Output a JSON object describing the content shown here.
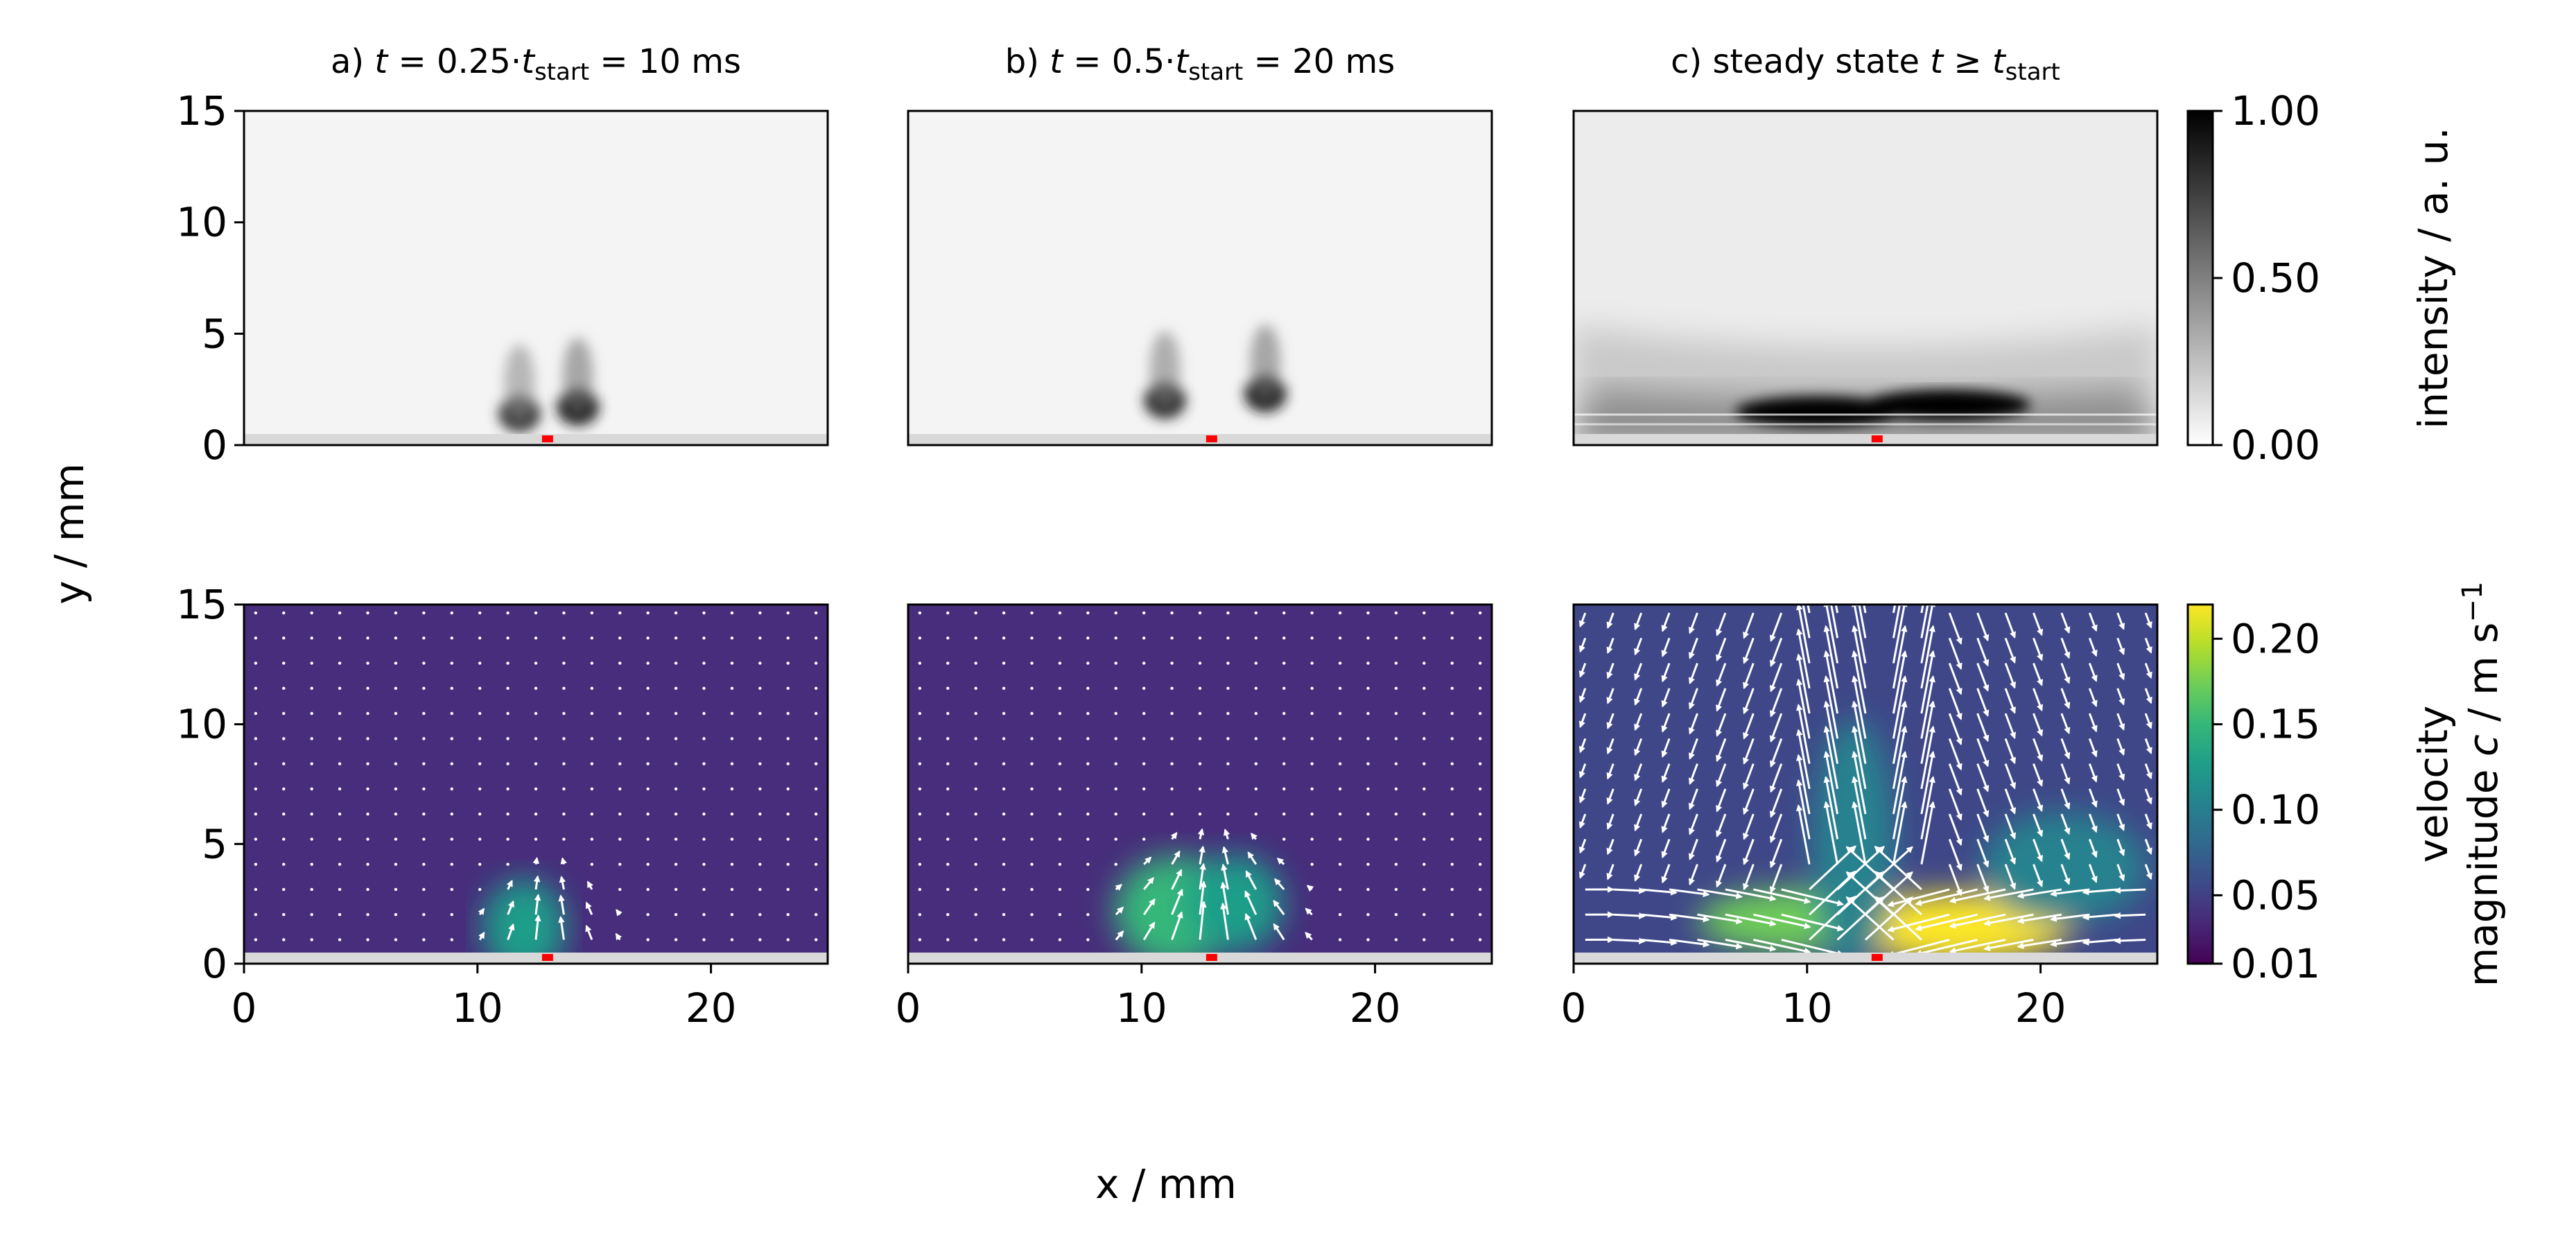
{
  "chart_data": [
    {
      "type": "heatmap",
      "panel": "a",
      "title_prefix": "a) ",
      "title_t": "t",
      "title_mid": " = 0.25·",
      "title_sub": "start",
      "title_suffix": " = 10 ms",
      "quantity": "intensity",
      "xlim": [
        0,
        25
      ],
      "ylim": [
        0,
        15
      ],
      "yticks": [
        "0",
        "5",
        "10",
        "15"
      ],
      "lobes": [
        {
          "x": 11.8,
          "y": 1.4,
          "amp": 0.8
        },
        {
          "x": 14.3,
          "y": 1.7,
          "amp": 0.9
        }
      ]
    },
    {
      "type": "heatmap",
      "panel": "b",
      "title_prefix": "b) ",
      "title_t": "t",
      "title_mid": " = 0.5·",
      "title_sub": "start",
      "title_suffix": " = 20 ms",
      "quantity": "intensity",
      "xlim": [
        0,
        25
      ],
      "ylim": [
        0,
        15
      ],
      "lobes": [
        {
          "x": 11.0,
          "y": 2.0,
          "amp": 0.85
        },
        {
          "x": 15.3,
          "y": 2.3,
          "amp": 0.9
        }
      ]
    },
    {
      "type": "heatmap",
      "panel": "c",
      "title_prefix": "c) steady state ",
      "title_t": "t",
      "title_mid": " ≥  ",
      "title_sub": "start",
      "title_suffix": "",
      "quantity": "intensity",
      "xlim": [
        0,
        25
      ],
      "ylim": [
        0,
        15
      ],
      "lobes": [
        {
          "x": 10.5,
          "y": 1.5,
          "amp": 1.0
        },
        {
          "x": 16.0,
          "y": 1.8,
          "amp": 1.0
        }
      ]
    },
    {
      "type": "heatmap",
      "panel": "a-velocity",
      "quantity": "velocity",
      "xlim": [
        0,
        25
      ],
      "ylim": [
        0,
        15
      ],
      "xticks": [
        "0",
        "10",
        "20"
      ],
      "yticks": [
        "0",
        "5",
        "10",
        "15"
      ],
      "vmax_local": 0.1
    },
    {
      "type": "heatmap",
      "panel": "b-velocity",
      "quantity": "velocity",
      "xlim": [
        0,
        25
      ],
      "ylim": [
        0,
        15
      ],
      "xticks": [
        "0",
        "10",
        "20"
      ],
      "vmax_local": 0.14
    },
    {
      "type": "heatmap",
      "panel": "c-velocity",
      "quantity": "velocity",
      "xlim": [
        0,
        25
      ],
      "ylim": [
        0,
        15
      ],
      "xticks": [
        "0",
        "10",
        "20"
      ],
      "vmax_local": 0.21
    }
  ],
  "axes": {
    "xlabel": "x / mm",
    "ylabel": "y / mm",
    "source_x_mm": 13
  },
  "colorbars": {
    "intensity": {
      "label": "intensity / a. u.",
      "ticks": [
        "0.00",
        "0.50",
        "1.00"
      ],
      "tick_values": [
        0.0,
        0.5,
        1.0
      ],
      "range": [
        0.0,
        1.0
      ]
    },
    "velocity": {
      "label_line1": "velocity",
      "label_line2_prefix": "magnitude ",
      "label_line2_italic": "c",
      "label_line2_suffix": " / m s",
      "label_sup": "−1",
      "ticks": [
        "0.01",
        "0.05",
        "0.10",
        "0.15",
        "0.20"
      ],
      "tick_values": [
        0.01,
        0.05,
        0.1,
        0.15,
        0.2
      ],
      "range": [
        0.01,
        0.22
      ]
    }
  },
  "colors": {
    "source_marker": "#ff0000",
    "wall": "#d9d9d9",
    "viridis": [
      "#440154",
      "#482878",
      "#3e4a89",
      "#31688e",
      "#26828e",
      "#1f9e89",
      "#35b779",
      "#6ece58",
      "#b5de2b",
      "#fde725"
    ]
  }
}
